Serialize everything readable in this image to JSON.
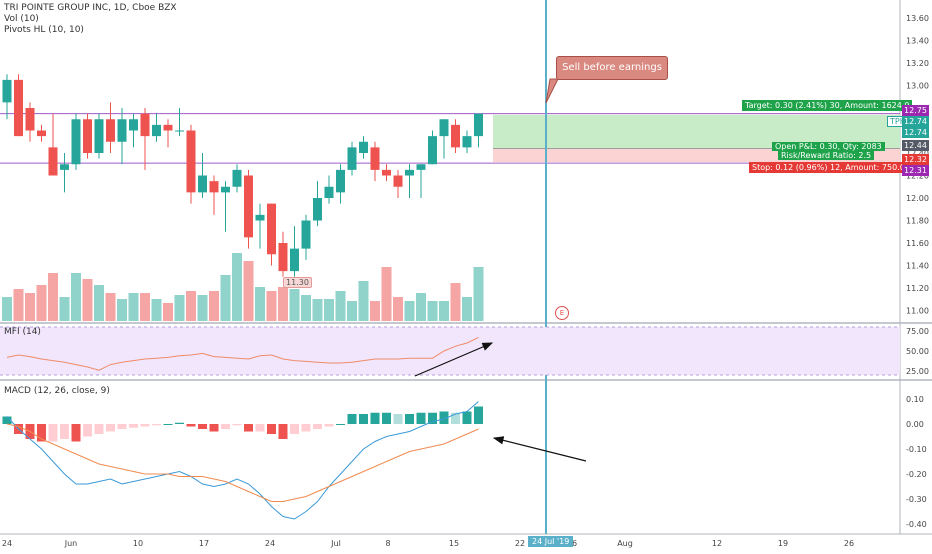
{
  "legend": {
    "symbol": "TRI POINTE GROUP INC, 1D, Cboe BZX",
    "volume": "Vol (10)",
    "pivots": "Pivots HL (10, 10)",
    "pivot_label": "11.30",
    "mfi": "MFI (14)",
    "macd": "MACD (12, 26, close, 9)"
  },
  "annotations": {
    "callout": "Sell before earnings",
    "earnings_marker": "E",
    "target": "Target: 0.30 (2.41%) 30, Amount: 1624.9",
    "open_pnl": "Open P&L: 0.30, Qty: 2083",
    "risk_reward": "Risk/Reward Ratio: 2.5",
    "stop": "Stop: 0.12 (0.96%) 12, Amount: 750.04",
    "tph": "TPH"
  },
  "price_badges": {
    "resistance": "12.75",
    "target": "12.74",
    "tph": "12.74",
    "entry": "12.44",
    "stop": "12.32",
    "support": "12.31"
  },
  "x_axis": {
    "labels": [
      "24",
      "Jun",
      "10",
      "17",
      "24",
      "Jul",
      "8",
      "15",
      "22",
      "26",
      "Aug",
      "12",
      "19",
      "26"
    ],
    "highlight": "24 Jul '19"
  },
  "colors": {
    "up": "#26a69a",
    "down": "#ef5350",
    "vol_up": "#8fd3cb",
    "vol_down": "#f6a5a5",
    "cursor": "#5ab0c8",
    "level_line": "#a05ac8",
    "target_zone": "#c8ecc7",
    "stop_zone": "#fbd3d3",
    "mfi": "#f08b69",
    "mfi_band": "#f1e6fc",
    "macd_line": "#3a9ad9",
    "signal_line": "#f08b50"
  },
  "chart_data": [
    {
      "type": "candlestick",
      "title": "TRI POINTE GROUP INC, 1D, Cboe BZX",
      "ylim": [
        10.8,
        13.75
      ],
      "y_ticks": [
        11.0,
        11.2,
        11.4,
        11.6,
        11.8,
        12.0,
        12.2,
        12.4,
        12.6,
        12.8,
        13.0,
        13.2,
        13.4,
        13.6
      ],
      "candles": [
        {
          "i": 0,
          "o": 12.85,
          "h": 13.1,
          "l": 12.7,
          "c": 13.05
        },
        {
          "i": 1,
          "o": 13.05,
          "h": 13.1,
          "l": 12.55,
          "c": 12.55
        },
        {
          "i": 2,
          "o": 12.8,
          "h": 12.85,
          "l": 12.5,
          "c": 12.6
        },
        {
          "i": 3,
          "o": 12.6,
          "h": 12.65,
          "l": 12.5,
          "c": 12.55
        },
        {
          "i": 4,
          "o": 12.45,
          "h": 12.75,
          "l": 12.2,
          "c": 12.2
        },
        {
          "i": 5,
          "o": 12.25,
          "h": 12.4,
          "l": 12.05,
          "c": 12.3
        },
        {
          "i": 6,
          "o": 12.3,
          "h": 12.75,
          "l": 12.25,
          "c": 12.7
        },
        {
          "i": 7,
          "o": 12.7,
          "h": 12.75,
          "l": 12.35,
          "c": 12.4
        },
        {
          "i": 8,
          "o": 12.4,
          "h": 12.75,
          "l": 12.35,
          "c": 12.7
        },
        {
          "i": 9,
          "o": 12.7,
          "h": 12.85,
          "l": 12.4,
          "c": 12.5
        },
        {
          "i": 10,
          "o": 12.5,
          "h": 12.8,
          "l": 12.3,
          "c": 12.7
        },
        {
          "i": 11,
          "o": 12.6,
          "h": 12.75,
          "l": 12.45,
          "c": 12.7
        },
        {
          "i": 12,
          "o": 12.75,
          "h": 12.8,
          "l": 12.25,
          "c": 12.55
        },
        {
          "i": 13,
          "o": 12.55,
          "h": 12.75,
          "l": 12.5,
          "c": 12.65
        },
        {
          "i": 14,
          "o": 12.65,
          "h": 12.7,
          "l": 12.45,
          "c": 12.6
        },
        {
          "i": 15,
          "o": 12.6,
          "h": 12.8,
          "l": 12.55,
          "c": 12.6
        },
        {
          "i": 16,
          "o": 12.6,
          "h": 12.65,
          "l": 11.95,
          "c": 12.05
        },
        {
          "i": 17,
          "o": 12.05,
          "h": 12.4,
          "l": 12.0,
          "c": 12.2
        },
        {
          "i": 18,
          "o": 12.15,
          "h": 12.2,
          "l": 11.85,
          "c": 12.05
        },
        {
          "i": 19,
          "o": 12.05,
          "h": 12.15,
          "l": 11.7,
          "c": 12.1
        },
        {
          "i": 20,
          "o": 12.1,
          "h": 12.3,
          "l": 12.05,
          "c": 12.25
        },
        {
          "i": 21,
          "o": 12.2,
          "h": 12.25,
          "l": 11.55,
          "c": 11.65
        },
        {
          "i": 22,
          "o": 11.8,
          "h": 11.95,
          "l": 11.55,
          "c": 11.85
        },
        {
          "i": 23,
          "o": 11.95,
          "h": 11.95,
          "l": 11.4,
          "c": 11.5
        },
        {
          "i": 24,
          "o": 11.6,
          "h": 11.7,
          "l": 11.3,
          "c": 11.35
        },
        {
          "i": 25,
          "o": 11.35,
          "h": 11.75,
          "l": 11.3,
          "c": 11.55
        },
        {
          "i": 26,
          "o": 11.55,
          "h": 11.85,
          "l": 11.45,
          "c": 11.8
        },
        {
          "i": 27,
          "o": 11.8,
          "h": 12.15,
          "l": 11.75,
          "c": 12.0
        },
        {
          "i": 28,
          "o": 12.0,
          "h": 12.2,
          "l": 11.95,
          "c": 12.1
        },
        {
          "i": 29,
          "o": 12.05,
          "h": 12.3,
          "l": 11.95,
          "c": 12.25
        },
        {
          "i": 30,
          "o": 12.25,
          "h": 12.5,
          "l": 12.2,
          "c": 12.45
        },
        {
          "i": 31,
          "o": 12.4,
          "h": 12.55,
          "l": 12.35,
          "c": 12.5
        },
        {
          "i": 32,
          "o": 12.45,
          "h": 12.5,
          "l": 12.15,
          "c": 12.25
        },
        {
          "i": 33,
          "o": 12.25,
          "h": 12.3,
          "l": 12.15,
          "c": 12.2
        },
        {
          "i": 34,
          "o": 12.2,
          "h": 12.25,
          "l": 12.0,
          "c": 12.1
        },
        {
          "i": 35,
          "o": 12.2,
          "h": 12.3,
          "l": 12.0,
          "c": 12.25
        },
        {
          "i": 36,
          "o": 12.25,
          "h": 12.3,
          "l": 12.0,
          "c": 12.3
        },
        {
          "i": 37,
          "o": 12.3,
          "h": 12.6,
          "l": 12.3,
          "c": 12.55
        },
        {
          "i": 38,
          "o": 12.55,
          "h": 12.7,
          "l": 12.35,
          "c": 12.7
        },
        {
          "i": 39,
          "o": 12.65,
          "h": 12.7,
          "l": 12.4,
          "c": 12.45
        },
        {
          "i": 40,
          "o": 12.45,
          "h": 12.6,
          "l": 12.4,
          "c": 12.55
        },
        {
          "i": 41,
          "o": 12.55,
          "h": 12.75,
          "l": 12.45,
          "c": 12.75
        }
      ],
      "price_lines": {
        "resistance": 12.75,
        "target": 12.74,
        "entry": 12.44,
        "stop": 12.32,
        "support": 12.31
      }
    },
    {
      "type": "bar",
      "title": "Vol (10)",
      "series": [
        {
          "values": [
            24,
            32,
            28,
            36,
            48,
            24,
            48,
            42,
            36,
            28,
            22,
            28,
            28,
            22,
            18,
            26,
            30,
            26,
            30,
            46,
            68,
            60,
            34,
            30,
            34,
            32,
            26,
            22,
            22,
            30,
            20,
            40,
            20,
            54,
            24,
            20,
            28,
            20,
            20,
            38,
            24,
            54
          ]
        }
      ]
    },
    {
      "type": "line",
      "title": "MFI (14)",
      "ylim": [
        20,
        80
      ],
      "y_ticks": [
        25.0,
        50.0,
        75.0
      ],
      "bands": [
        20,
        80
      ],
      "series": [
        {
          "values": [
            42,
            45,
            43,
            40,
            38,
            36,
            33,
            30,
            26,
            33,
            36,
            38,
            40,
            41,
            42,
            44,
            45,
            47,
            43,
            42,
            41,
            40,
            44,
            45,
            40,
            38,
            37,
            36,
            35,
            35,
            36,
            38,
            40,
            40,
            40,
            41,
            41,
            41,
            50,
            56,
            60,
            67
          ]
        }
      ]
    },
    {
      "type": "line",
      "title": "MACD (12, 26, close, 9)",
      "ylim": [
        -0.42,
        0.13
      ],
      "y_ticks": [
        -0.4,
        -0.3,
        -0.2,
        -0.1,
        0.0,
        0.1
      ],
      "series": [
        {
          "values": [
            0.03,
            -0.02,
            -0.06,
            -0.1,
            -0.15,
            -0.2,
            -0.24,
            -0.24,
            -0.23,
            -0.22,
            -0.24,
            -0.23,
            -0.22,
            -0.21,
            -0.2,
            -0.19,
            -0.21,
            -0.24,
            -0.25,
            -0.24,
            -0.22,
            -0.24,
            -0.28,
            -0.33,
            -0.37,
            -0.38,
            -0.35,
            -0.31,
            -0.25,
            -0.2,
            -0.15,
            -0.1,
            -0.07,
            -0.05,
            -0.04,
            -0.03,
            -0.01,
            0.01,
            0.02,
            0.04,
            0.05,
            0.09
          ]
        },
        {
          "values": [
            0.0,
            -0.01,
            -0.03,
            -0.06,
            -0.08,
            -0.1,
            -0.12,
            -0.14,
            -0.16,
            -0.17,
            -0.18,
            -0.19,
            -0.2,
            -0.2,
            -0.2,
            -0.21,
            -0.21,
            -0.21,
            -0.22,
            -0.23,
            -0.25,
            -0.27,
            -0.29,
            -0.31,
            -0.31,
            -0.3,
            -0.29,
            -0.27,
            -0.25,
            -0.23,
            -0.21,
            -0.19,
            -0.17,
            -0.15,
            -0.13,
            -0.11,
            -0.1,
            -0.09,
            -0.08,
            -0.06,
            -0.04,
            -0.02
          ]
        },
        {
          "values": [
            0.03,
            -0.04,
            -0.06,
            -0.07,
            -0.07,
            -0.06,
            -0.07,
            -0.05,
            -0.04,
            -0.03,
            -0.02,
            -0.015,
            -0.01,
            -0.005,
            0.0,
            0.005,
            -0.01,
            -0.02,
            -0.03,
            -0.02,
            -0.005,
            -0.03,
            -0.03,
            -0.04,
            -0.06,
            -0.04,
            -0.03,
            -0.02,
            -0.01,
            0.0,
            0.04,
            0.04,
            0.045,
            0.045,
            0.04,
            0.04,
            0.045,
            0.045,
            0.05,
            0.045,
            0.05,
            0.07
          ]
        }
      ]
    }
  ]
}
